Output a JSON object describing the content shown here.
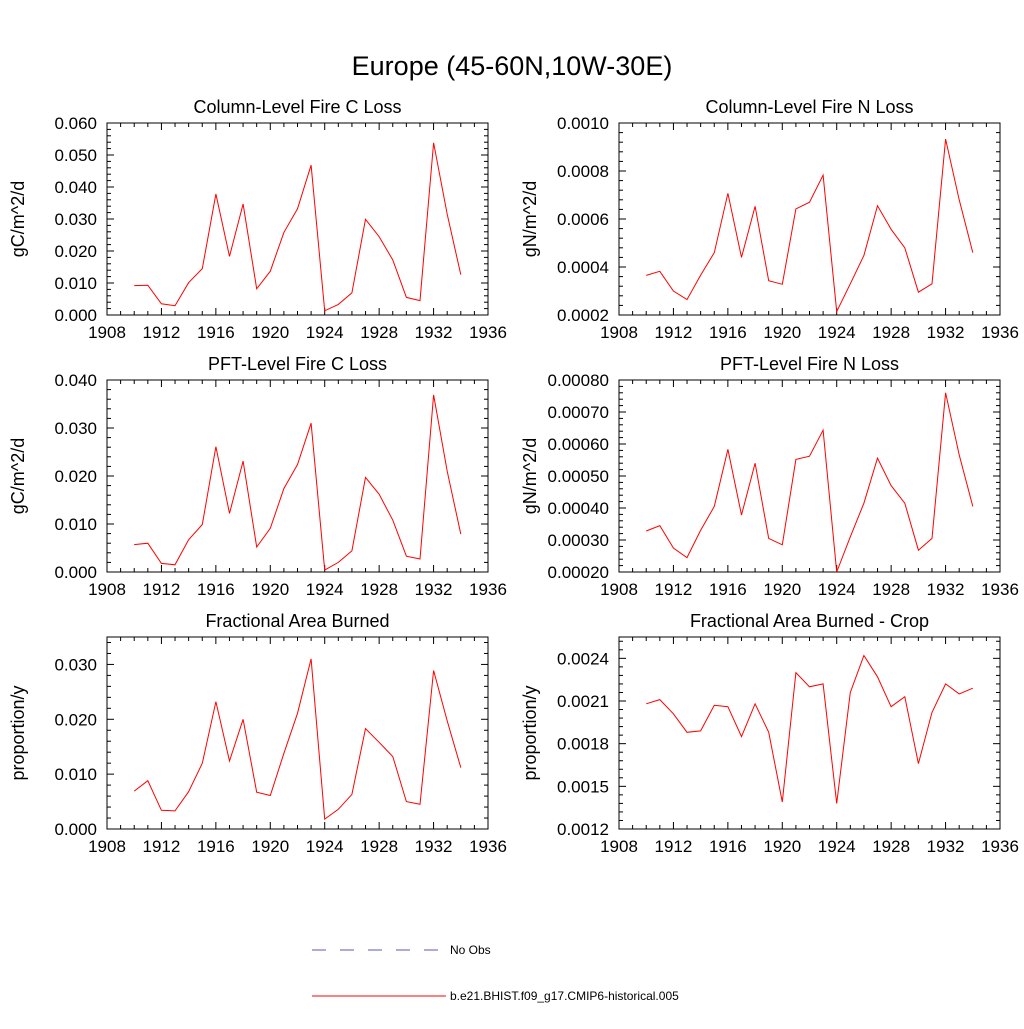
{
  "title": "Europe (45-60N,10W-30E)",
  "x_ticks": [
    "1908",
    "1912",
    "1916",
    "1920",
    "1924",
    "1928",
    "1932",
    "1936"
  ],
  "years": [
    1910,
    1911,
    1912,
    1913,
    1914,
    1915,
    1916,
    1917,
    1918,
    1919,
    1920,
    1921,
    1922,
    1923,
    1924,
    1925,
    1926,
    1927,
    1928,
    1929,
    1930,
    1931,
    1932,
    1933,
    1934
  ],
  "colors": {
    "series": "#ff0000",
    "obs": "#5a5ab4",
    "axis": "#000000"
  },
  "legend": {
    "obs_label": "No Obs",
    "model_label": "b.e21.BHIST.f09_g17.CMIP6-historical.005"
  },
  "chart_data": [
    {
      "type": "line",
      "title": "Column-Level Fire C Loss",
      "ylabel": "gC/m^2/d",
      "xlabel": "",
      "xlim": [
        1908,
        1936
      ],
      "ylim": [
        0,
        0.06
      ],
      "ytick_values": [
        0,
        0.01,
        0.02,
        0.03,
        0.04,
        0.05,
        0.06
      ],
      "ytick_labels": [
        "0.000",
        "0.010",
        "0.020",
        "0.030",
        "0.040",
        "0.050",
        "0.060"
      ],
      "series": [
        {
          "name": "b.e21.BHIST.f09_g17.CMIP6-historical.005",
          "values": [
            0.0092,
            0.0093,
            0.0035,
            0.0029,
            0.0101,
            0.0145,
            0.0378,
            0.0183,
            0.0347,
            0.0082,
            0.0137,
            0.0258,
            0.0332,
            0.0468,
            0.0013,
            0.0033,
            0.0069,
            0.0299,
            0.0245,
            0.0172,
            0.0055,
            0.0045,
            0.0538,
            0.0315,
            0.0126
          ]
        }
      ]
    },
    {
      "type": "line",
      "title": "Column-Level Fire N Loss",
      "ylabel": "gN/m^2/d",
      "xlabel": "",
      "xlim": [
        1908,
        1936
      ],
      "ylim": [
        0.0002,
        0.001
      ],
      "ytick_values": [
        0.0002,
        0.0004,
        0.0006,
        0.0008,
        0.001
      ],
      "ytick_labels": [
        "0.0002",
        "0.0004",
        "0.0006",
        "0.0008",
        "0.0010"
      ],
      "series": [
        {
          "name": "b.e21.BHIST.f09_g17.CMIP6-historical.005",
          "values": [
            0.000365,
            0.000382,
            0.0003,
            0.000264,
            0.000366,
            0.00046,
            0.000707,
            0.00044,
            0.000653,
            0.000343,
            0.000328,
            0.000642,
            0.00067,
            0.000783,
            0.000214,
            0.00033,
            0.000448,
            0.000655,
            0.000557,
            0.00048,
            0.000295,
            0.00033,
            0.000933,
            0.00068,
            0.00046
          ]
        }
      ]
    },
    {
      "type": "line",
      "title": "PFT-Level Fire C Loss",
      "ylabel": "gC/m^2/d",
      "xlabel": "",
      "xlim": [
        1908,
        1936
      ],
      "ylim": [
        0,
        0.04
      ],
      "ytick_values": [
        0,
        0.01,
        0.02,
        0.03,
        0.04
      ],
      "ytick_labels": [
        "0.000",
        "0.010",
        "0.020",
        "0.030",
        "0.040"
      ],
      "series": [
        {
          "name": "b.e21.BHIST.f09_g17.CMIP6-historical.005",
          "values": [
            0.0057,
            0.006,
            0.0018,
            0.0015,
            0.0067,
            0.0099,
            0.0261,
            0.0122,
            0.0231,
            0.0052,
            0.0091,
            0.0174,
            0.0224,
            0.031,
            0.0004,
            0.002,
            0.0044,
            0.0197,
            0.0162,
            0.0108,
            0.0033,
            0.0027,
            0.0369,
            0.021,
            0.0079
          ]
        }
      ]
    },
    {
      "type": "line",
      "title": "PFT-Level Fire N Loss",
      "ylabel": "gN/m^2/d",
      "xlabel": "",
      "xlim": [
        1908,
        1936
      ],
      "ylim": [
        0.0002,
        0.0008
      ],
      "ytick_values": [
        0.0002,
        0.0003,
        0.0004,
        0.0005,
        0.0006,
        0.0007,
        0.0008
      ],
      "ytick_labels": [
        "0.00020",
        "0.00030",
        "0.00040",
        "0.00050",
        "0.00060",
        "0.00070",
        "0.00080"
      ],
      "series": [
        {
          "name": "b.e21.BHIST.f09_g17.CMIP6-historical.005",
          "values": [
            0.000328,
            0.000345,
            0.000275,
            0.000245,
            0.00033,
            0.000405,
            0.000583,
            0.000378,
            0.00054,
            0.000305,
            0.000285,
            0.000552,
            0.000562,
            0.000643,
            0.0002,
            0.00031,
            0.000415,
            0.000556,
            0.00047,
            0.000415,
            0.000268,
            0.000305,
            0.00076,
            0.000566,
            0.000405
          ]
        }
      ]
    },
    {
      "type": "line",
      "title": "Fractional Area Burned",
      "ylabel": "proportion/y",
      "xlabel": "",
      "xlim": [
        1908,
        1936
      ],
      "ylim": [
        0,
        0.035
      ],
      "ytick_values": [
        0,
        0.01,
        0.02,
        0.03
      ],
      "ytick_labels": [
        "0.000",
        "0.010",
        "0.020",
        "0.030"
      ],
      "series": [
        {
          "name": "b.e21.BHIST.f09_g17.CMIP6-historical.005",
          "values": [
            0.0069,
            0.0088,
            0.0034,
            0.0033,
            0.0068,
            0.012,
            0.0232,
            0.0124,
            0.02,
            0.0067,
            0.0061,
            0.0138,
            0.0211,
            0.031,
            0.0018,
            0.0036,
            0.0063,
            0.0183,
            0.0158,
            0.0132,
            0.005,
            0.0045,
            0.0289,
            0.0197,
            0.0112
          ]
        }
      ]
    },
    {
      "type": "line",
      "title": "Fractional Area Burned - Crop",
      "ylabel": "proportion/y",
      "xlabel": "",
      "xlim": [
        1908,
        1936
      ],
      "ylim": [
        0.0012,
        0.00255
      ],
      "ytick_values": [
        0.0012,
        0.0015,
        0.0018,
        0.0021,
        0.0024
      ],
      "ytick_labels": [
        "0.0012",
        "0.0015",
        "0.0018",
        "0.0021",
        "0.0024"
      ],
      "series": [
        {
          "name": "b.e21.BHIST.f09_g17.CMIP6-historical.005",
          "values": [
            0.00208,
            0.00211,
            0.00201,
            0.00188,
            0.00189,
            0.00207,
            0.00206,
            0.00185,
            0.00208,
            0.00188,
            0.00139,
            0.0023,
            0.0022,
            0.00222,
            0.00138,
            0.00216,
            0.00242,
            0.00227,
            0.00206,
            0.00213,
            0.00166,
            0.00202,
            0.00222,
            0.00215,
            0.00219
          ]
        }
      ]
    }
  ]
}
